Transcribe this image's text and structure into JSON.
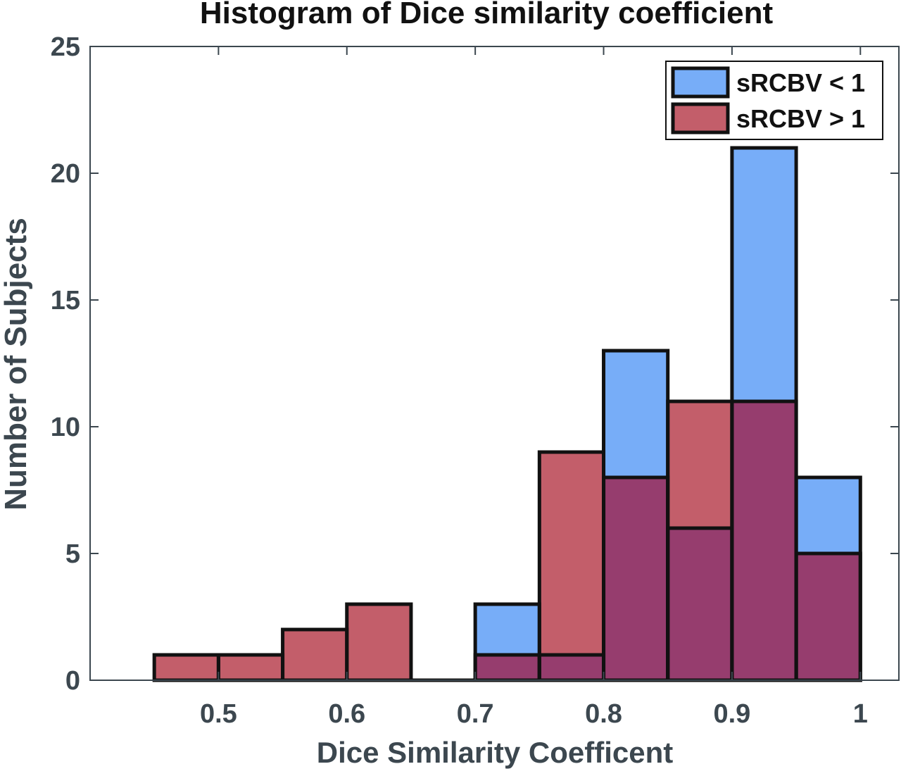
{
  "chart_data": {
    "type": "bar",
    "title": "Histogram of Dice similarity coefficient",
    "xlabel": "Dice Similarity Coefficent",
    "ylabel": "Number of Subjects",
    "xlim": [
      0.4,
      1.03
    ],
    "ylim": [
      0,
      25
    ],
    "bin_edges": [
      0.45,
      0.5,
      0.55,
      0.6,
      0.65,
      0.7,
      0.75,
      0.8,
      0.85,
      0.9,
      0.95,
      1.0
    ],
    "x_ticks": [
      0.5,
      0.6,
      0.7,
      0.8,
      0.9,
      1
    ],
    "x_tick_labels": [
      "0.5",
      "0.6",
      "0.7",
      "0.8",
      "0.9",
      "1"
    ],
    "y_ticks": [
      0,
      5,
      10,
      15,
      20,
      25
    ],
    "y_tick_labels": [
      "0",
      "5",
      "10",
      "15",
      "20",
      "25"
    ],
    "series": [
      {
        "name": "sRCBV < 1",
        "color": "#77adf8",
        "values": [
          0,
          0,
          0,
          0,
          0,
          3,
          1,
          13,
          6,
          21,
          8
        ]
      },
      {
        "name": "sRCBV > 1",
        "color": "#c35e6a",
        "values": [
          1,
          1,
          2,
          3,
          0,
          1,
          9,
          8,
          11,
          11,
          5
        ]
      }
    ],
    "overlap_color": "#963d6e",
    "legend": "top-right",
    "grid": false
  }
}
